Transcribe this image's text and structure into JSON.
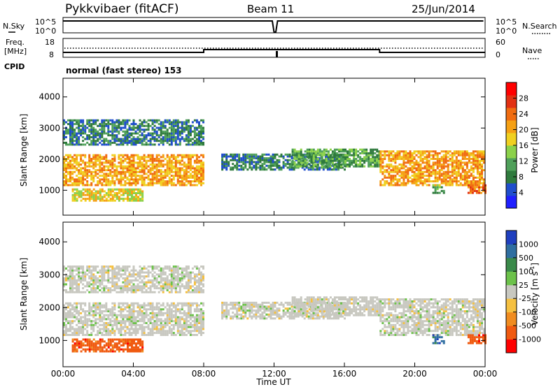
{
  "header": {
    "title": "Pykkvibaer (fitACF)",
    "beam": "Beam 11",
    "date": "25/Jun/2014"
  },
  "noise_panel": {
    "left_label": "N.Sky",
    "left_ticks": [
      "10^5",
      "10^0"
    ],
    "right_label": "N.Search",
    "right_ticks": [
      "10^5",
      "10^0"
    ]
  },
  "freq_panel": {
    "left_label_line1": "Freq.",
    "left_label_line2": "[MHz]",
    "left_ticks": [
      "18",
      "8"
    ],
    "right_label": "Nave",
    "right_ticks": [
      "60",
      "0"
    ]
  },
  "cpid_panel": {
    "label": "CPID",
    "text": "normal (fast stereo) 153"
  },
  "power_panel": {
    "ylabel": "Slant Range [km]",
    "yticks": [
      "4000",
      "3000",
      "2000",
      "1000"
    ],
    "colorbar_label": "Power [dB]",
    "colorbar_ticks": [
      "28",
      "24",
      "20",
      "16",
      "12",
      "8",
      "4"
    ],
    "colors": [
      "#1f1fff",
      "#1f4ecc",
      "#2f7a3d",
      "#4fa05a",
      "#8bd14a",
      "#f0d020",
      "#f5a014",
      "#f06c10",
      "#e23012",
      "#ff0000"
    ]
  },
  "velocity_panel": {
    "ylabel": "Slant Range [km]",
    "yticks": [
      "4000",
      "3000",
      "2000",
      "1000"
    ],
    "colorbar_label": "Velocity [m s",
    "colorbar_label_sup": "-1",
    "colorbar_label_end": "]",
    "colorbar_ticks": [
      "1000",
      "500",
      "100",
      "25",
      "-25",
      "-100",
      "-500",
      "-1000"
    ],
    "colors": [
      "#1f3fbf",
      "#2f6ea0",
      "#3a8a4a",
      "#6cc24a",
      "#c8c8c0",
      "#f5c040",
      "#f08c20",
      "#f05a10",
      "#ff0000"
    ]
  },
  "xaxis": {
    "label": "Time UT",
    "ticks": [
      "00:00",
      "04:00",
      "08:00",
      "12:00",
      "16:00",
      "20:00",
      "00:00"
    ]
  },
  "chart_data": {
    "type": "heatmap",
    "title": "Pykkvibaer (fitACF)",
    "xlabel": "Time UT",
    "ylabel": "Slant Range [km]",
    "x_range_hours": [
      0,
      24
    ],
    "y_range_km": [
      200,
      4600
    ],
    "power_colorbar_range_db": [
      0,
      32
    ],
    "velocity_colorbar_range_ms": [
      -1000,
      1000
    ],
    "frequency_mhz": {
      "00:00-08:00": 12,
      "08:00-18:00": 13,
      "18:00-24:00": 12
    },
    "scatter_regions": [
      {
        "time": "00:00-08:00",
        "range_km": [
          1200,
          2200
        ],
        "power_db": 20,
        "velocity": "~0"
      },
      {
        "time": "00:30-04:30",
        "range_km": [
          700,
          1100
        ],
        "power_db": 16,
        "velocity": "-100 to -500"
      },
      {
        "time": "00:00-08:00",
        "range_km": [
          2500,
          3300
        ],
        "power_db": 8,
        "velocity": "~0"
      },
      {
        "time": "09:00-16:00",
        "range_km": [
          1700,
          2200
        ],
        "power_db": 6,
        "velocity": "~0"
      },
      {
        "time": "13:00-18:00",
        "range_km": [
          1800,
          2400
        ],
        "power_db": 12,
        "velocity": "~0"
      },
      {
        "time": "18:00-24:00",
        "range_km": [
          1200,
          2300
        ],
        "power_db": 20,
        "velocity": "~0"
      },
      {
        "time": "21:00-21:40",
        "range_km": [
          950,
          1250
        ],
        "power_db": 12,
        "velocity": "500 to 1000"
      },
      {
        "time": "23:00-24:00",
        "range_km": [
          950,
          1250
        ],
        "power_db": 24,
        "velocity": "-500"
      }
    ]
  }
}
